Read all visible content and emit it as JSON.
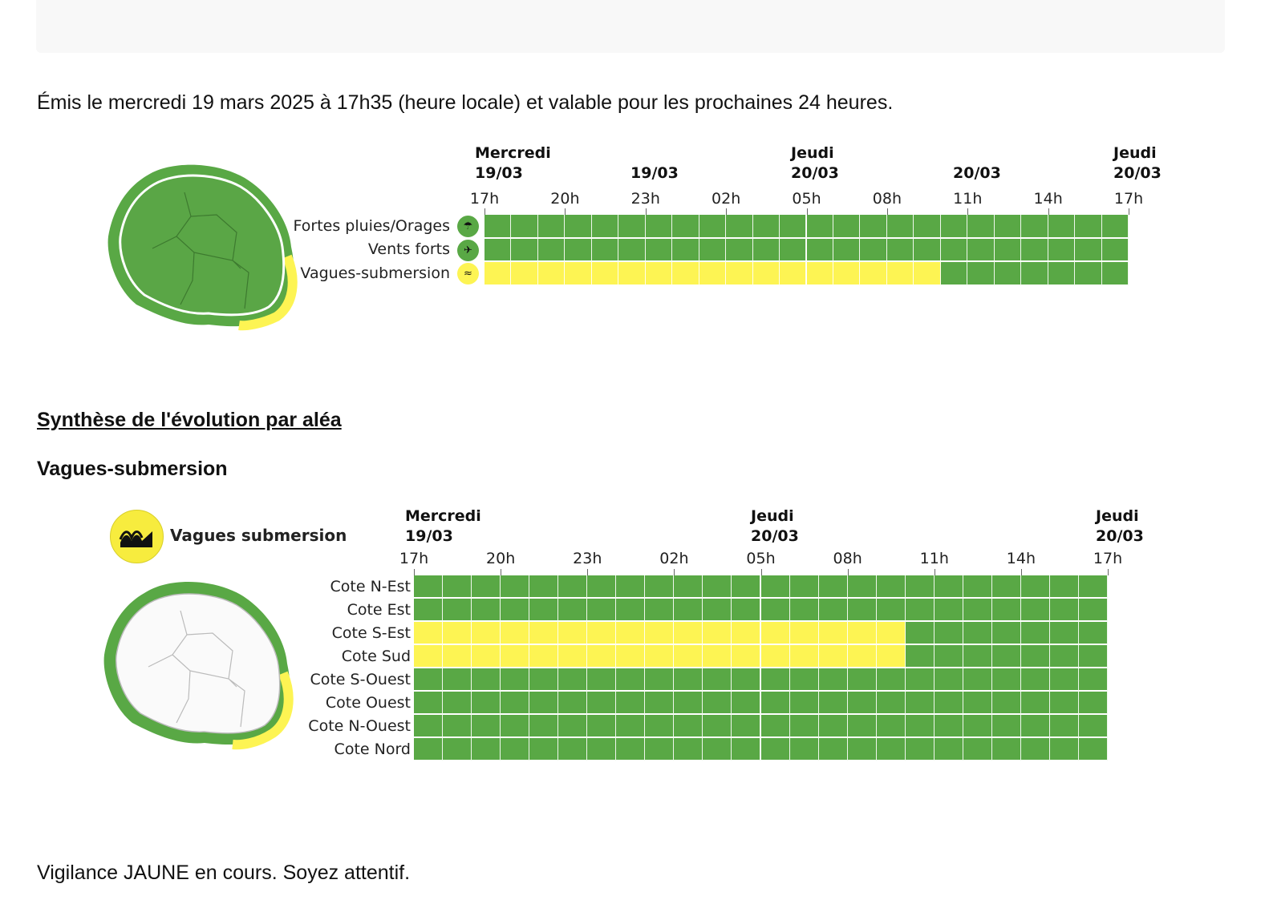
{
  "header": {
    "issued": "Émis le mercredi 19 mars 2025 à 17h35 (heure locale) et valable pour les prochaines 24 heures."
  },
  "colors": {
    "green": "#59a845",
    "yellow": "#fdf453"
  },
  "chart_data": [
    {
      "type": "table",
      "day_headers": [
        {
          "day": "Mercredi",
          "date": "19/03"
        },
        {
          "day": "",
          "date": "19/03"
        },
        {
          "day": "Jeudi",
          "date": "20/03"
        },
        {
          "day": "",
          "date": "20/03"
        },
        {
          "day": "Jeudi",
          "date": "20/03"
        }
      ],
      "hours": [
        "17h",
        "20h",
        "23h",
        "02h",
        "05h",
        "08h",
        "11h",
        "14h",
        "17h"
      ],
      "rows": [
        {
          "label": "Fortes pluies/Orages",
          "icon": "rain-storm-icon",
          "levels": [
            "green",
            "green",
            "green",
            "green",
            "green",
            "green",
            "green",
            "green",
            "green",
            "green",
            "green",
            "green",
            "green",
            "green",
            "green",
            "green",
            "green",
            "green",
            "green",
            "green",
            "green",
            "green",
            "green",
            "green"
          ]
        },
        {
          "label": "Vents forts",
          "icon": "wind-icon",
          "levels": [
            "green",
            "green",
            "green",
            "green",
            "green",
            "green",
            "green",
            "green",
            "green",
            "green",
            "green",
            "green",
            "green",
            "green",
            "green",
            "green",
            "green",
            "green",
            "green",
            "green",
            "green",
            "green",
            "green",
            "green"
          ]
        },
        {
          "label": "Vagues-submersion",
          "icon": "wave-icon",
          "levels": [
            "yellow",
            "yellow",
            "yellow",
            "yellow",
            "yellow",
            "yellow",
            "yellow",
            "yellow",
            "yellow",
            "yellow",
            "yellow",
            "yellow",
            "yellow",
            "yellow",
            "yellow",
            "yellow",
            "yellow",
            "green",
            "green",
            "green",
            "green",
            "green",
            "green",
            "green"
          ]
        }
      ]
    },
    {
      "type": "table",
      "legend": {
        "label": "Vagues submersion",
        "icon": "wave-icon"
      },
      "day_headers": [
        {
          "day": "Mercredi",
          "date": "19/03"
        },
        {
          "day": "Jeudi",
          "date": "20/03"
        },
        {
          "day": "Jeudi",
          "date": "20/03"
        }
      ],
      "hours": [
        "17h",
        "20h",
        "23h",
        "02h",
        "05h",
        "08h",
        "11h",
        "14h",
        "17h"
      ],
      "rows": [
        {
          "label": "Cote N-Est",
          "levels": [
            "green",
            "green",
            "green",
            "green",
            "green",
            "green",
            "green",
            "green",
            "green",
            "green",
            "green",
            "green",
            "green",
            "green",
            "green",
            "green",
            "green",
            "green",
            "green",
            "green",
            "green",
            "green",
            "green",
            "green"
          ]
        },
        {
          "label": "Cote Est",
          "levels": [
            "green",
            "green",
            "green",
            "green",
            "green",
            "green",
            "green",
            "green",
            "green",
            "green",
            "green",
            "green",
            "green",
            "green",
            "green",
            "green",
            "green",
            "green",
            "green",
            "green",
            "green",
            "green",
            "green",
            "green"
          ]
        },
        {
          "label": "Cote S-Est",
          "levels": [
            "yellow",
            "yellow",
            "yellow",
            "yellow",
            "yellow",
            "yellow",
            "yellow",
            "yellow",
            "yellow",
            "yellow",
            "yellow",
            "yellow",
            "yellow",
            "yellow",
            "yellow",
            "yellow",
            "yellow",
            "green",
            "green",
            "green",
            "green",
            "green",
            "green",
            "green"
          ]
        },
        {
          "label": "Cote Sud",
          "levels": [
            "yellow",
            "yellow",
            "yellow",
            "yellow",
            "yellow",
            "yellow",
            "yellow",
            "yellow",
            "yellow",
            "yellow",
            "yellow",
            "yellow",
            "yellow",
            "yellow",
            "yellow",
            "yellow",
            "yellow",
            "green",
            "green",
            "green",
            "green",
            "green",
            "green",
            "green"
          ]
        },
        {
          "label": "Cote S-Ouest",
          "levels": [
            "green",
            "green",
            "green",
            "green",
            "green",
            "green",
            "green",
            "green",
            "green",
            "green",
            "green",
            "green",
            "green",
            "green",
            "green",
            "green",
            "green",
            "green",
            "green",
            "green",
            "green",
            "green",
            "green",
            "green"
          ]
        },
        {
          "label": "Cote Ouest",
          "levels": [
            "green",
            "green",
            "green",
            "green",
            "green",
            "green",
            "green",
            "green",
            "green",
            "green",
            "green",
            "green",
            "green",
            "green",
            "green",
            "green",
            "green",
            "green",
            "green",
            "green",
            "green",
            "green",
            "green",
            "green"
          ]
        },
        {
          "label": "Cote N-Ouest",
          "levels": [
            "green",
            "green",
            "green",
            "green",
            "green",
            "green",
            "green",
            "green",
            "green",
            "green",
            "green",
            "green",
            "green",
            "green",
            "green",
            "green",
            "green",
            "green",
            "green",
            "green",
            "green",
            "green",
            "green",
            "green"
          ]
        },
        {
          "label": "Cote Nord",
          "levels": [
            "green",
            "green",
            "green",
            "green",
            "green",
            "green",
            "green",
            "green",
            "green",
            "green",
            "green",
            "green",
            "green",
            "green",
            "green",
            "green",
            "green",
            "green",
            "green",
            "green",
            "green",
            "green",
            "green",
            "green"
          ]
        }
      ]
    }
  ],
  "synthesis": {
    "title": "Synthèse de l'évolution par aléa",
    "subtitle": "Vagues-submersion"
  },
  "footer": {
    "text": "Vigilance JAUNE en cours. Soyez attentif."
  }
}
